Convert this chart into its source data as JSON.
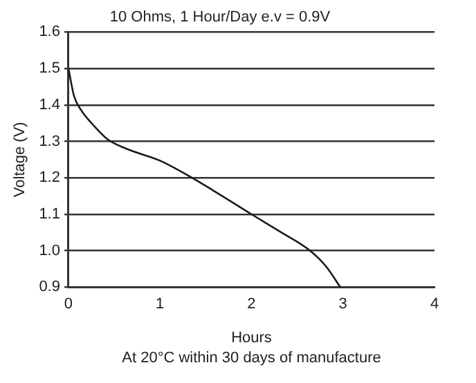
{
  "chart_data": {
    "type": "line",
    "title": "10 Ohms, 1 Hour/Day e.v = 0.9V",
    "xlabel": "Hours",
    "ylabel": "Voltage (V)",
    "annotations": [
      "At 20°C within 30 days of manufacture"
    ],
    "x": [
      0,
      0.06,
      0.14,
      0.27,
      0.43,
      0.63,
      1.0,
      1.26,
      1.57,
      1.98,
      2.3,
      2.64,
      2.82,
      2.97
    ],
    "series": [
      {
        "color": "#1a1a1a",
        "values": [
          1.5,
          1.425,
          1.385,
          1.345,
          1.305,
          1.28,
          1.247,
          1.213,
          1.167,
          1.103,
          1.054,
          1.0,
          0.955,
          0.9
        ]
      }
    ],
    "xlim": [
      0,
      4
    ],
    "xticks": [
      0,
      1,
      2,
      3,
      4
    ],
    "ylim": [
      0.9,
      1.6
    ],
    "yticks": [
      0.9,
      {
        "value": 1,
        "label": "1.0"
      },
      1.1,
      1.2,
      1.3,
      1.4,
      1.5,
      1.6
    ],
    "grid": "y",
    "legend": false,
    "marker": "none",
    "line_style": "solid"
  }
}
